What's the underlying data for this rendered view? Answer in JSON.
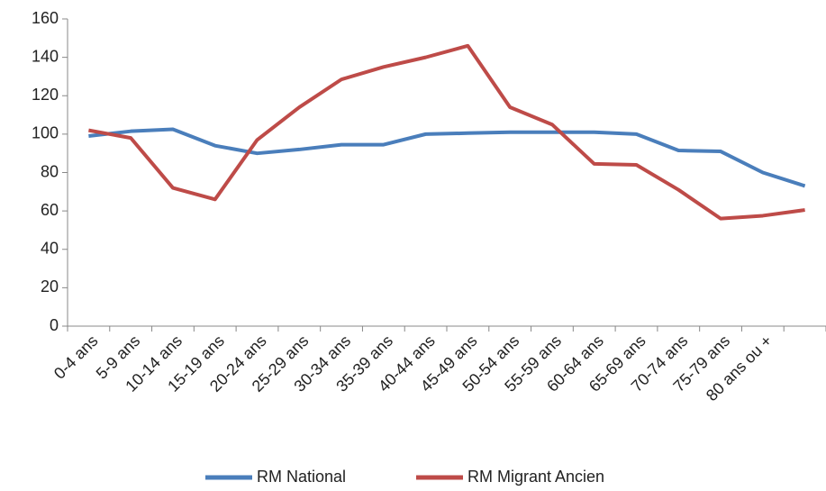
{
  "chart_data": {
    "type": "line",
    "categories": [
      "0-4 ans",
      "5-9 ans",
      "10-14 ans",
      "15-19 ans",
      "20-24 ans",
      "25-29 ans",
      "30-34 ans",
      "35-39 ans",
      "40-44 ans",
      "45-49 ans",
      "50-54 ans",
      "55-59 ans",
      "60-64 ans",
      "65-69 ans",
      "70-74 ans",
      "75-79 ans",
      "80 ans ou +",
      null
    ],
    "series": [
      {
        "name": "RM National",
        "color": "#4a7ebb",
        "values": [
          99,
          101.5,
          102.5,
          94,
          90,
          92,
          94.5,
          94.5,
          100,
          100.5,
          101,
          101,
          101,
          100,
          91.5,
          91,
          80,
          73
        ]
      },
      {
        "name": "RM Migrant Ancien",
        "color": "#be4b48",
        "values": [
          102,
          98,
          72,
          66,
          97,
          114,
          128.5,
          135,
          140,
          146,
          114,
          105,
          84.5,
          84,
          71,
          56,
          57.5,
          60.5
        ]
      }
    ],
    "ylim": [
      0,
      160
    ],
    "yticks": [
      0,
      20,
      40,
      60,
      80,
      100,
      120,
      140,
      160
    ],
    "grid": false,
    "legend": "bottom"
  }
}
